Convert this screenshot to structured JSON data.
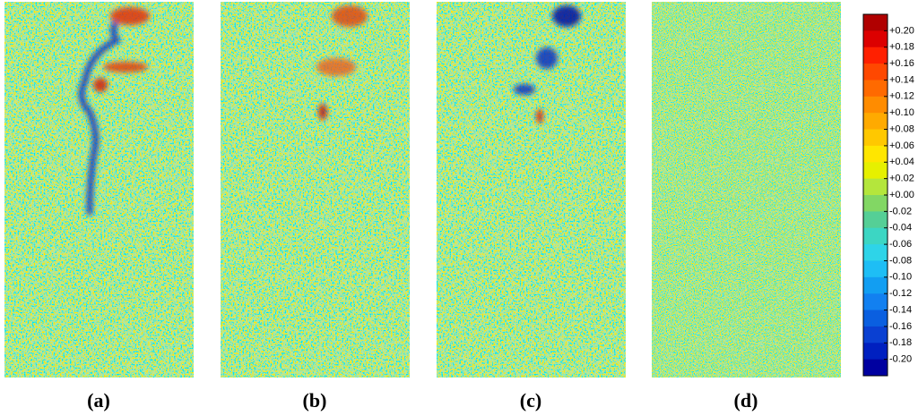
{
  "panels": [
    {
      "label": "(a)"
    },
    {
      "label": "(b)"
    },
    {
      "label": "(c)"
    },
    {
      "label": "(d)"
    }
  ],
  "colorbar": {
    "colors": [
      "#b00000",
      "#dc0000",
      "#ff2000",
      "#ff4800",
      "#ff6a00",
      "#ff8c00",
      "#ffaa00",
      "#ffc800",
      "#ffe600",
      "#e6f000",
      "#b4e63c",
      "#82d764",
      "#55cf96",
      "#3cd6c3",
      "#2ed4e8",
      "#1ebef5",
      "#129ef2",
      "#1280f0",
      "#0a5fe0",
      "#0a40d2",
      "#0020c0",
      "#0000a0"
    ],
    "ticks": [
      {
        "value": 0.2,
        "label": "+0.20"
      },
      {
        "value": 0.18,
        "label": "+0.18"
      },
      {
        "value": 0.16,
        "label": "+0.16"
      },
      {
        "value": 0.14,
        "label": "+0.14"
      },
      {
        "value": 0.12,
        "label": "+0.12"
      },
      {
        "value": 0.1,
        "label": "+0.10"
      },
      {
        "value": 0.08,
        "label": "+0.08"
      },
      {
        "value": 0.06,
        "label": "+0.06"
      },
      {
        "value": 0.04,
        "label": "+0.04"
      },
      {
        "value": 0.02,
        "label": "+0.02"
      },
      {
        "value": 0,
        "label": "+0.00"
      },
      {
        "value": -0.02,
        "label": "-0.02"
      },
      {
        "value": -0.04,
        "label": "-0.04"
      },
      {
        "value": -0.06,
        "label": "-0.06"
      },
      {
        "value": -0.08,
        "label": "-0.08"
      },
      {
        "value": -0.1,
        "label": "-0.10"
      },
      {
        "value": -0.12,
        "label": "-0.12"
      },
      {
        "value": -0.14,
        "label": "-0.14"
      },
      {
        "value": -0.16,
        "label": "-0.16"
      },
      {
        "value": -0.18,
        "label": "-0.18"
      },
      {
        "value": -0.2,
        "label": "-0.20"
      }
    ]
  }
}
